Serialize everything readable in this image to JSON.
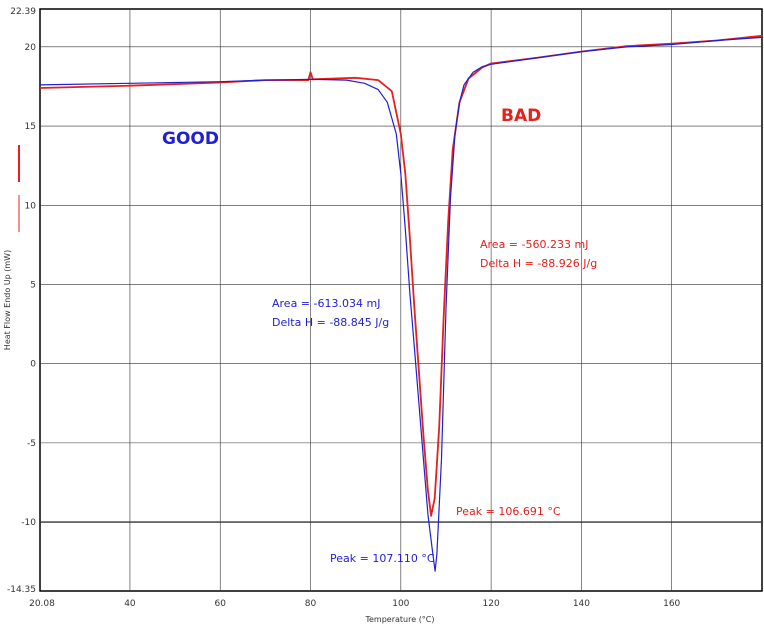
{
  "chart_data": {
    "type": "line",
    "title": "",
    "xlabel": "Temperature (°C)",
    "ylabel": "Heat Flow Endo Up (mW)",
    "xlim": [
      20.08,
      180
    ],
    "ylim": [
      -14.35,
      22.39
    ],
    "x_ticks": [
      40,
      60,
      80,
      100,
      120,
      140,
      160
    ],
    "y_ticks": [
      20,
      15,
      10,
      5,
      0,
      -5,
      -10
    ],
    "x_min_label": "20.08",
    "y_max_label": "22.39",
    "y_min_label": "-14.35",
    "grid": true,
    "colors": {
      "good": "#1f1fd6",
      "bad": "#e8201c",
      "grid": "#333333"
    },
    "series": [
      {
        "name": "GOOD",
        "color": "#1f1fd6",
        "x": [
          20.08,
          40,
          60,
          70,
          80,
          88,
          92,
          95,
          97,
          99,
          100,
          101,
          102,
          103,
          104,
          105,
          106,
          107,
          107.6,
          108,
          109,
          110,
          111,
          112,
          113,
          114,
          116,
          118,
          120,
          130,
          140,
          150,
          160,
          170,
          180
        ],
        "y": [
          17.6,
          17.7,
          17.8,
          17.9,
          17.95,
          17.9,
          17.7,
          17.3,
          16.5,
          14.5,
          12,
          8.5,
          4.5,
          1,
          -2.5,
          -6,
          -9.5,
          -11.8,
          -13.1,
          -12,
          -6,
          3.5,
          10.5,
          14.5,
          16.5,
          17.6,
          18.4,
          18.75,
          18.9,
          19.3,
          19.7,
          20.0,
          20.15,
          20.4,
          20.6
        ]
      },
      {
        "name": "BAD",
        "color": "#e8201c",
        "x": [
          20.08,
          40,
          60,
          70,
          79.5,
          80,
          80.5,
          90,
          95,
          98,
          100,
          101,
          102,
          103,
          104,
          105,
          106,
          106.7,
          107.5,
          108.5,
          109.5,
          110.5,
          111.5,
          113,
          115,
          118,
          120,
          130,
          140,
          150,
          160,
          170,
          180
        ],
        "y": [
          17.4,
          17.55,
          17.75,
          17.9,
          17.9,
          18.4,
          17.95,
          18.05,
          17.9,
          17.2,
          14.5,
          12,
          8,
          3.5,
          -0.5,
          -4.5,
          -8,
          -9.6,
          -8.5,
          -4,
          3,
          9,
          13.5,
          16.5,
          18.0,
          18.7,
          18.95,
          19.3,
          19.7,
          20.05,
          20.2,
          20.4,
          20.7
        ]
      }
    ],
    "annotations": {
      "good_label": "GOOD",
      "bad_label": "BAD",
      "good_area": "Area = -613.034 mJ",
      "good_delta_h": "Delta H = -88.845 J/g",
      "bad_area": "Area = -560.233 mJ",
      "bad_delta_h": "Delta H = -88.926 J/g",
      "good_peak": "Peak = 107.110 °C",
      "bad_peak": "Peak = 106.691 °C"
    }
  }
}
